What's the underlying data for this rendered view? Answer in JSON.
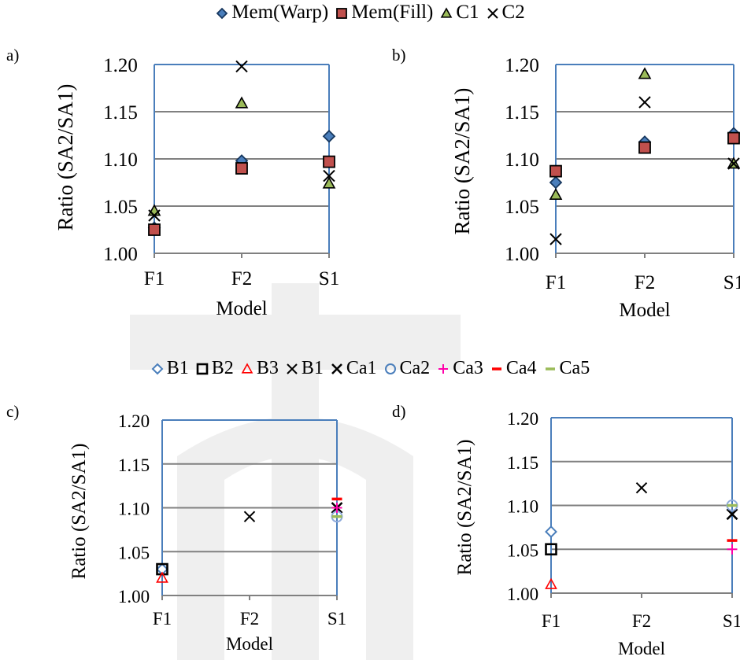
{
  "legend_top": [
    {
      "label": "Mem(Warp)",
      "marker": "diamond",
      "fill": "#4a7ebb",
      "stroke": "#17375e"
    },
    {
      "label": "Mem(Fill)",
      "marker": "square",
      "fill": "#c0504d",
      "stroke": "#000000"
    },
    {
      "label": "C1",
      "marker": "triangle",
      "fill": "#9bbb59",
      "stroke": "#000000"
    },
    {
      "label": "C2",
      "marker": "x",
      "fill": "none",
      "stroke": "#000000"
    }
  ],
  "legend_bottom": [
    {
      "label": "B1",
      "marker": "diamond-open",
      "fill": "none",
      "stroke": "#4a7ebb"
    },
    {
      "label": "B2",
      "marker": "square-open",
      "fill": "none",
      "stroke": "#000000"
    },
    {
      "label": "B3",
      "marker": "triangle-open",
      "fill": "none",
      "stroke": "#ff0000"
    },
    {
      "label": "B1",
      "marker": "x",
      "fill": "none",
      "stroke": "#000000"
    },
    {
      "label": "Ca1",
      "marker": "x-bold",
      "fill": "none",
      "stroke": "#000000"
    },
    {
      "label": "Ca2",
      "marker": "circle-open",
      "fill": "none",
      "stroke": "#4a7ebb"
    },
    {
      "label": "Ca3",
      "marker": "plus",
      "fill": "none",
      "stroke": "#ff00aa"
    },
    {
      "label": "Ca4",
      "marker": "dash",
      "fill": "none",
      "stroke": "#ff0000"
    },
    {
      "label": "Ca5",
      "marker": "dash",
      "fill": "none",
      "stroke": "#9bbb59"
    }
  ],
  "chart_data": [
    {
      "panel": "a)",
      "type": "scatter",
      "categories": [
        "F1",
        "F2",
        "S1"
      ],
      "xlabel": "Model",
      "ylabel": "Ratio (SA2/SA1)",
      "ylim": [
        1.0,
        1.2
      ],
      "yticks": [
        "1.00",
        "1.05",
        "1.10",
        "1.15",
        "1.20"
      ],
      "grid": true,
      "series": [
        {
          "name": "Mem(Warp)",
          "marker": "diamond",
          "values": [
            1.027,
            1.098,
            1.124
          ]
        },
        {
          "name": "Mem(Fill)",
          "marker": "square",
          "values": [
            1.025,
            1.09,
            1.097
          ]
        },
        {
          "name": "C1",
          "marker": "triangle",
          "values": [
            1.045,
            1.159,
            1.074
          ]
        },
        {
          "name": "C2",
          "marker": "x",
          "values": [
            1.04,
            1.198,
            1.082
          ]
        }
      ]
    },
    {
      "panel": "b)",
      "type": "scatter",
      "categories": [
        "F1",
        "F2",
        "S1"
      ],
      "xlabel": "Model",
      "ylabel": "Ratio (SA2/SA1)",
      "ylim": [
        1.0,
        1.2
      ],
      "yticks": [
        "1.00",
        "1.05",
        "1.10",
        "1.15",
        "1.20"
      ],
      "grid": true,
      "series": [
        {
          "name": "Mem(Warp)",
          "marker": "diamond",
          "values": [
            1.075,
            1.118,
            1.127
          ]
        },
        {
          "name": "Mem(Fill)",
          "marker": "square",
          "values": [
            1.087,
            1.112,
            1.122
          ]
        },
        {
          "name": "C1",
          "marker": "triangle",
          "values": [
            1.062,
            1.19,
            1.095
          ]
        },
        {
          "name": "C2",
          "marker": "x",
          "values": [
            1.015,
            1.16,
            1.095
          ]
        }
      ]
    },
    {
      "panel": "c)",
      "type": "scatter",
      "categories": [
        "F1",
        "F2",
        "S1"
      ],
      "xlabel": "Model",
      "ylabel": "Ratio (SA2/SA1)",
      "ylim": [
        1.0,
        1.2
      ],
      "yticks": [
        "1.00",
        "1.05",
        "1.10",
        "1.15",
        "1.20"
      ],
      "grid": true,
      "series": [
        {
          "name": "B1",
          "marker": "diamond-open",
          "values": [
            1.03,
            null,
            null
          ]
        },
        {
          "name": "B2",
          "marker": "square-open",
          "values": [
            1.03,
            null,
            null
          ]
        },
        {
          "name": "B3",
          "marker": "triangle-open",
          "values": [
            1.02,
            null,
            null
          ]
        },
        {
          "name": "B1",
          "marker": "x",
          "values": [
            null,
            1.09,
            null
          ]
        },
        {
          "name": "Ca1",
          "marker": "x-bold",
          "values": [
            null,
            null,
            1.1
          ]
        },
        {
          "name": "Ca2",
          "marker": "circle-open",
          "values": [
            null,
            null,
            1.09
          ]
        },
        {
          "name": "Ca3",
          "marker": "plus",
          "values": [
            null,
            null,
            1.1
          ]
        },
        {
          "name": "Ca4",
          "marker": "dash-red",
          "values": [
            null,
            null,
            1.11
          ]
        },
        {
          "name": "Ca5",
          "marker": "dash-green",
          "values": [
            null,
            null,
            1.09
          ]
        }
      ]
    },
    {
      "panel": "d)",
      "type": "scatter",
      "categories": [
        "F1",
        "F2",
        "S1"
      ],
      "xlabel": "Model",
      "ylabel": "Ratio (SA2/SA1)",
      "ylim": [
        1.0,
        1.2
      ],
      "yticks": [
        "1.00",
        "1.05",
        "1.10",
        "1.15",
        "1.20"
      ],
      "grid": true,
      "series": [
        {
          "name": "B1",
          "marker": "diamond-open",
          "values": [
            1.07,
            null,
            null
          ]
        },
        {
          "name": "B2",
          "marker": "square-open",
          "values": [
            1.05,
            null,
            null
          ]
        },
        {
          "name": "B3",
          "marker": "triangle-open",
          "values": [
            1.01,
            null,
            null
          ]
        },
        {
          "name": "B1",
          "marker": "x",
          "values": [
            null,
            1.12,
            null
          ]
        },
        {
          "name": "Ca1",
          "marker": "x-bold",
          "values": [
            null,
            null,
            1.09
          ]
        },
        {
          "name": "Ca2",
          "marker": "circle-open",
          "values": [
            null,
            null,
            1.1
          ]
        },
        {
          "name": "Ca3",
          "marker": "plus",
          "values": [
            null,
            null,
            1.05
          ]
        },
        {
          "name": "Ca4",
          "marker": "dash-red",
          "values": [
            null,
            null,
            1.06
          ]
        },
        {
          "name": "Ca5",
          "marker": "dash-green",
          "values": [
            null,
            null,
            1.1
          ]
        }
      ]
    }
  ]
}
